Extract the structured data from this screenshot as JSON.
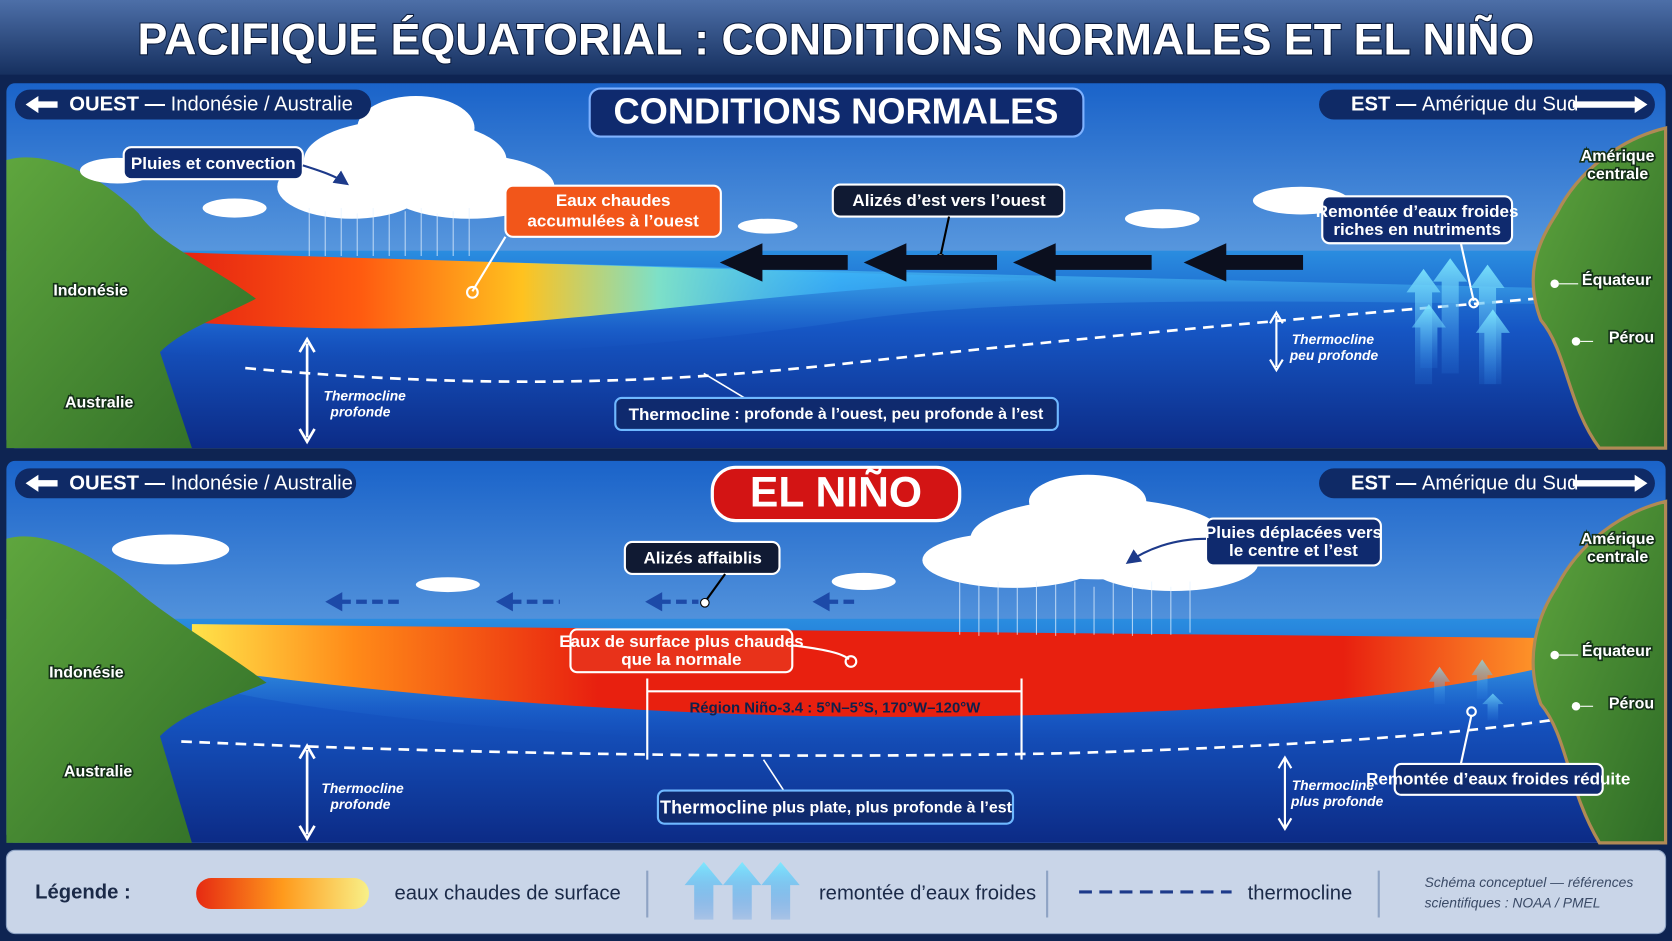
{
  "title": "PACIFIQUE ÉQUATORIAL : CONDITIONS NORMALES ET EL NIÑO",
  "normal": {
    "title": "CONDITIONS NORMALES",
    "west": {
      "label": "OUEST",
      "dash": "—",
      "region": "Indonésie / Australie"
    },
    "east": {
      "label": "EST",
      "dash": "—",
      "region": "Amérique du Sud"
    },
    "rain": "Pluies et convection",
    "warm_pool": [
      "Eaux chaudes",
      "accumulées à l’ouest"
    ],
    "trade_winds": "Alizés d’est vers l’ouest",
    "upwelling": [
      "Remontée d’eaux froides",
      "riches en nutriments"
    ],
    "places": {
      "central_america": [
        "Amérique",
        "centrale"
      ],
      "equator": "Équateur",
      "peru": "Pérou",
      "indonesia": "Indonésie",
      "australia": "Australie"
    },
    "thermocline_west": [
      "Thermocline",
      "profonde"
    ],
    "thermocline_east": [
      "Thermocline",
      "peu profonde"
    ],
    "thermocline": {
      "term": "Thermocline",
      "rest": ": profonde à l’ouest, peu profonde à l’est"
    }
  },
  "el_nino": {
    "title": "EL NIÑO",
    "west": {
      "label": "OUEST",
      "dash": "—",
      "region": "Indonésie / Australie"
    },
    "east": {
      "label": "EST",
      "dash": "—",
      "region": "Amérique du Sud"
    },
    "trade_winds": "Alizés affaiblis",
    "rain": [
      "Pluies déplacées vers",
      "le centre et l’est"
    ],
    "warm_surface": [
      "Eaux de surface plus chaudes",
      "que la normale"
    ],
    "region": "Région Niño-3.4 : 5°N–5°S, 170°W–120°W",
    "places": {
      "central_america": [
        "Amérique",
        "centrale"
      ],
      "equator": "Équateur",
      "peru": "Pérou",
      "indonesia": "Indonésie",
      "australia": "Australie"
    },
    "thermocline_west": [
      "Thermocline",
      "profonde"
    ],
    "thermocline_east": [
      "Thermocline",
      "plus profonde"
    ],
    "thermocline": {
      "term": "Thermocline",
      "rest": "plus plate, plus profonde à l’est"
    },
    "upwelling": "Remontée d’eaux froides réduite"
  },
  "legend": {
    "title": "Légende :",
    "warm": "eaux chaudes de surface",
    "upwelling": "remontée d’eaux froides",
    "thermocline": "thermocline",
    "source": [
      "Schéma conceptuel — références",
      "scientifiques : NOAA / PMEL"
    ]
  }
}
